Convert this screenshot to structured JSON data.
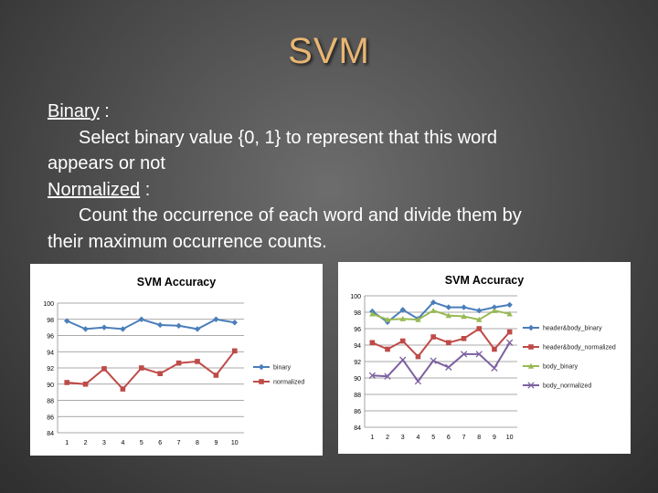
{
  "slide": {
    "title": "SVM",
    "binary_term": "Binary",
    "binary_colon": " :",
    "binary_desc_1": "Select binary value {0, 1} to represent that this word",
    "binary_desc_2": "appears or not",
    "normalized_term": "Normalized",
    "normalized_colon": " :",
    "normalized_desc_1": "Count the occurrence of each word and divide them by",
    "normalized_desc_2": "their maximum occurrence counts."
  },
  "chart_data": [
    {
      "type": "line",
      "title": "SVM Accuracy",
      "x": [
        "1",
        "2",
        "3",
        "4",
        "5",
        "6",
        "7",
        "8",
        "9",
        "10"
      ],
      "ylim": [
        84,
        100
      ],
      "yticks": [
        84,
        86,
        88,
        90,
        92,
        94,
        96,
        98,
        100
      ],
      "grid": true,
      "legend": "right",
      "series": [
        {
          "name": "binary",
          "color": "#4a7ebb",
          "marker": "diamond",
          "values": [
            97.8,
            96.8,
            97.0,
            96.8,
            98.0,
            97.3,
            97.2,
            96.8,
            98.0,
            97.6
          ]
        },
        {
          "name": "normalized",
          "color": "#be4b48",
          "marker": "square",
          "values": [
            90.2,
            90.0,
            91.9,
            89.4,
            92.0,
            91.3,
            92.6,
            92.8,
            91.1,
            94.1
          ]
        }
      ]
    },
    {
      "type": "line",
      "title": "SVM Accuracy",
      "x": [
        "1",
        "2",
        "3",
        "4",
        "5",
        "6",
        "7",
        "8",
        "9",
        "10"
      ],
      "ylim": [
        84,
        100
      ],
      "yticks": [
        84,
        86,
        88,
        90,
        92,
        94,
        96,
        98,
        100
      ],
      "grid": true,
      "legend": "right",
      "series": [
        {
          "name": "header&body_binary",
          "color": "#4a7ebb",
          "marker": "diamond",
          "values": [
            98.1,
            96.8,
            98.3,
            97.2,
            99.2,
            98.6,
            98.6,
            98.2,
            98.6,
            98.9
          ]
        },
        {
          "name": "header&body_normalized",
          "color": "#be4b48",
          "marker": "square",
          "values": [
            94.3,
            93.5,
            94.5,
            92.6,
            95.0,
            94.3,
            94.8,
            96.0,
            93.5,
            95.6
          ]
        },
        {
          "name": "body_binary",
          "color": "#98b954",
          "marker": "triangle",
          "values": [
            97.8,
            97.1,
            97.2,
            97.1,
            98.2,
            97.6,
            97.5,
            97.1,
            98.2,
            97.8
          ]
        },
        {
          "name": "body_normalized",
          "color": "#7d60a0",
          "marker": "x",
          "values": [
            90.3,
            90.2,
            92.2,
            89.6,
            92.1,
            91.3,
            92.9,
            92.9,
            91.2,
            94.3
          ]
        }
      ]
    }
  ]
}
